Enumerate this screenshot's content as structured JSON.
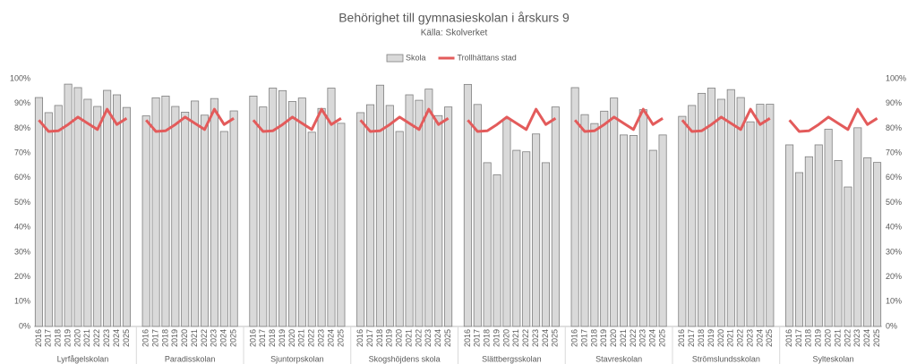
{
  "chart_data": {
    "type": "bar",
    "title": "Behörighet till gymnasieskolan i årskurs 9",
    "subtitle": "Källa: Skolverket",
    "categories": [
      "2016",
      "2017",
      "2018",
      "2019",
      "2020",
      "2021",
      "2022",
      "2023",
      "2024",
      "2025",
      null,
      "2016",
      "2017",
      "2018",
      "2019",
      "2020",
      "2021",
      "2022",
      "2023",
      "2024",
      "2025",
      null,
      "2016",
      "2017",
      "2018",
      "2019",
      "2020",
      "2021",
      "2022",
      "2023",
      "2024",
      "2025",
      null,
      "2016",
      "2017",
      "2018",
      "2019",
      "2020",
      "2021",
      "2022",
      "2023",
      "2024",
      "2025",
      null,
      "2016",
      "2017",
      "2018",
      "2019",
      "2020",
      "2021",
      "2022",
      "2023",
      "2024",
      "2025",
      null,
      "2016",
      "2017",
      "2018",
      "2019",
      "2020",
      "2021",
      "2022",
      "2023",
      "2024",
      "2025",
      null,
      "2016",
      "2017",
      "2018",
      "2019",
      "2020",
      "2021",
      "2022",
      "2023",
      "2024",
      "2025",
      null,
      "2016",
      "2017",
      "2018",
      "2019",
      "2020",
      "2021",
      "2022",
      "2023",
      "2024",
      "2025"
    ],
    "groups": [
      "Lyrfågelskolan",
      "Paradisskolan",
      "Sjuntorpskolan",
      "Skogshöjdens skola",
      "Slättbergsskolan",
      "Stavreskolan",
      "Strömslundsskolan",
      "Sylteskolan"
    ],
    "series": [
      {
        "name": "Skola",
        "type": "bar",
        "color": "#d9d9d9",
        "values": [
          92.4,
          86.3,
          89.2,
          97.8,
          96.4,
          91.7,
          88.8,
          95.3,
          93.5,
          88.4,
          null,
          85,
          92.3,
          93,
          88.8,
          86.5,
          91,
          85.3,
          92,
          78.7,
          87,
          null,
          93,
          88.6,
          96.2,
          95.2,
          90.8,
          92.2,
          78.4,
          88,
          96.2,
          82,
          null,
          86.3,
          89.5,
          97.4,
          89.2,
          78.7,
          93.5,
          91.3,
          95.8,
          85.1,
          88.6,
          null,
          97.7,
          89.6,
          66.1,
          61.2,
          83.8,
          71.1,
          70.5,
          77.7,
          66.1,
          88.6,
          null,
          96.4,
          85.5,
          81.9,
          86.9,
          92.2,
          77.3,
          77.1,
          87.5,
          71.1,
          77.3,
          null,
          84.8,
          89.2,
          94.1,
          96.2,
          91.7,
          95.6,
          92.4,
          82.6,
          89.7,
          89.7,
          null,
          73.3,
          62.1,
          68.5,
          73.3,
          79.6,
          67,
          56.3,
          80.2,
          68.1,
          66.2
        ]
      },
      {
        "name": "Trollhättans stad",
        "type": "line",
        "color": "#e35b5b",
        "axis": "y2",
        "values": [
          83.3,
          78.7,
          79,
          81.5,
          84.5,
          82,
          79.5,
          87.7,
          81.5,
          84,
          null,
          83.3,
          78.7,
          79,
          81.5,
          84.5,
          82,
          79.5,
          87.7,
          81.5,
          84,
          null,
          83.3,
          78.7,
          79,
          81.5,
          84.5,
          82,
          79.5,
          87.7,
          81.5,
          84,
          null,
          83.3,
          78.7,
          79,
          81.5,
          84.5,
          82,
          79.5,
          87.7,
          81.5,
          84,
          null,
          83.3,
          78.7,
          79,
          81.5,
          84.5,
          82,
          79.5,
          87.7,
          81.5,
          84,
          null,
          83.3,
          78.7,
          79,
          81.5,
          84.5,
          82,
          79.5,
          87.7,
          81.5,
          84,
          null,
          83.3,
          78.7,
          79,
          81.5,
          84.5,
          82,
          79.5,
          87.7,
          81.5,
          84,
          null,
          83.3,
          78.7,
          79,
          81.5,
          84.5,
          82,
          79.5,
          87.7,
          81.5,
          84
        ]
      }
    ],
    "ylim": [
      0,
      100
    ],
    "yticks": [
      {
        "value": 0,
        "label": "0%"
      },
      {
        "value": 10,
        "label": "10%"
      },
      {
        "value": 20,
        "label": "20%"
      },
      {
        "value": 30,
        "label": "30%"
      },
      {
        "value": 40,
        "label": "40%"
      },
      {
        "value": 50,
        "label": "50%"
      },
      {
        "value": 60,
        "label": "60%"
      },
      {
        "value": 70,
        "label": "70%"
      },
      {
        "value": 80,
        "label": "80%"
      },
      {
        "value": 90,
        "label": "90%"
      },
      {
        "value": 100,
        "label": "100%"
      }
    ],
    "y2lim": [
      0,
      100
    ],
    "y2ticks": [
      {
        "value": 0,
        "label": "0%"
      },
      {
        "value": 10,
        "label": "10%"
      },
      {
        "value": 20,
        "label": "20%"
      },
      {
        "value": 30,
        "label": "30%"
      },
      {
        "value": 40,
        "label": "40%"
      },
      {
        "value": 50,
        "label": "50%"
      },
      {
        "value": 60,
        "label": "60%"
      },
      {
        "value": 70,
        "label": "70%"
      },
      {
        "value": 80,
        "label": "80%"
      },
      {
        "value": 90,
        "label": "90%"
      },
      {
        "value": 100,
        "label": "100%"
      }
    ],
    "legend": "top"
  }
}
